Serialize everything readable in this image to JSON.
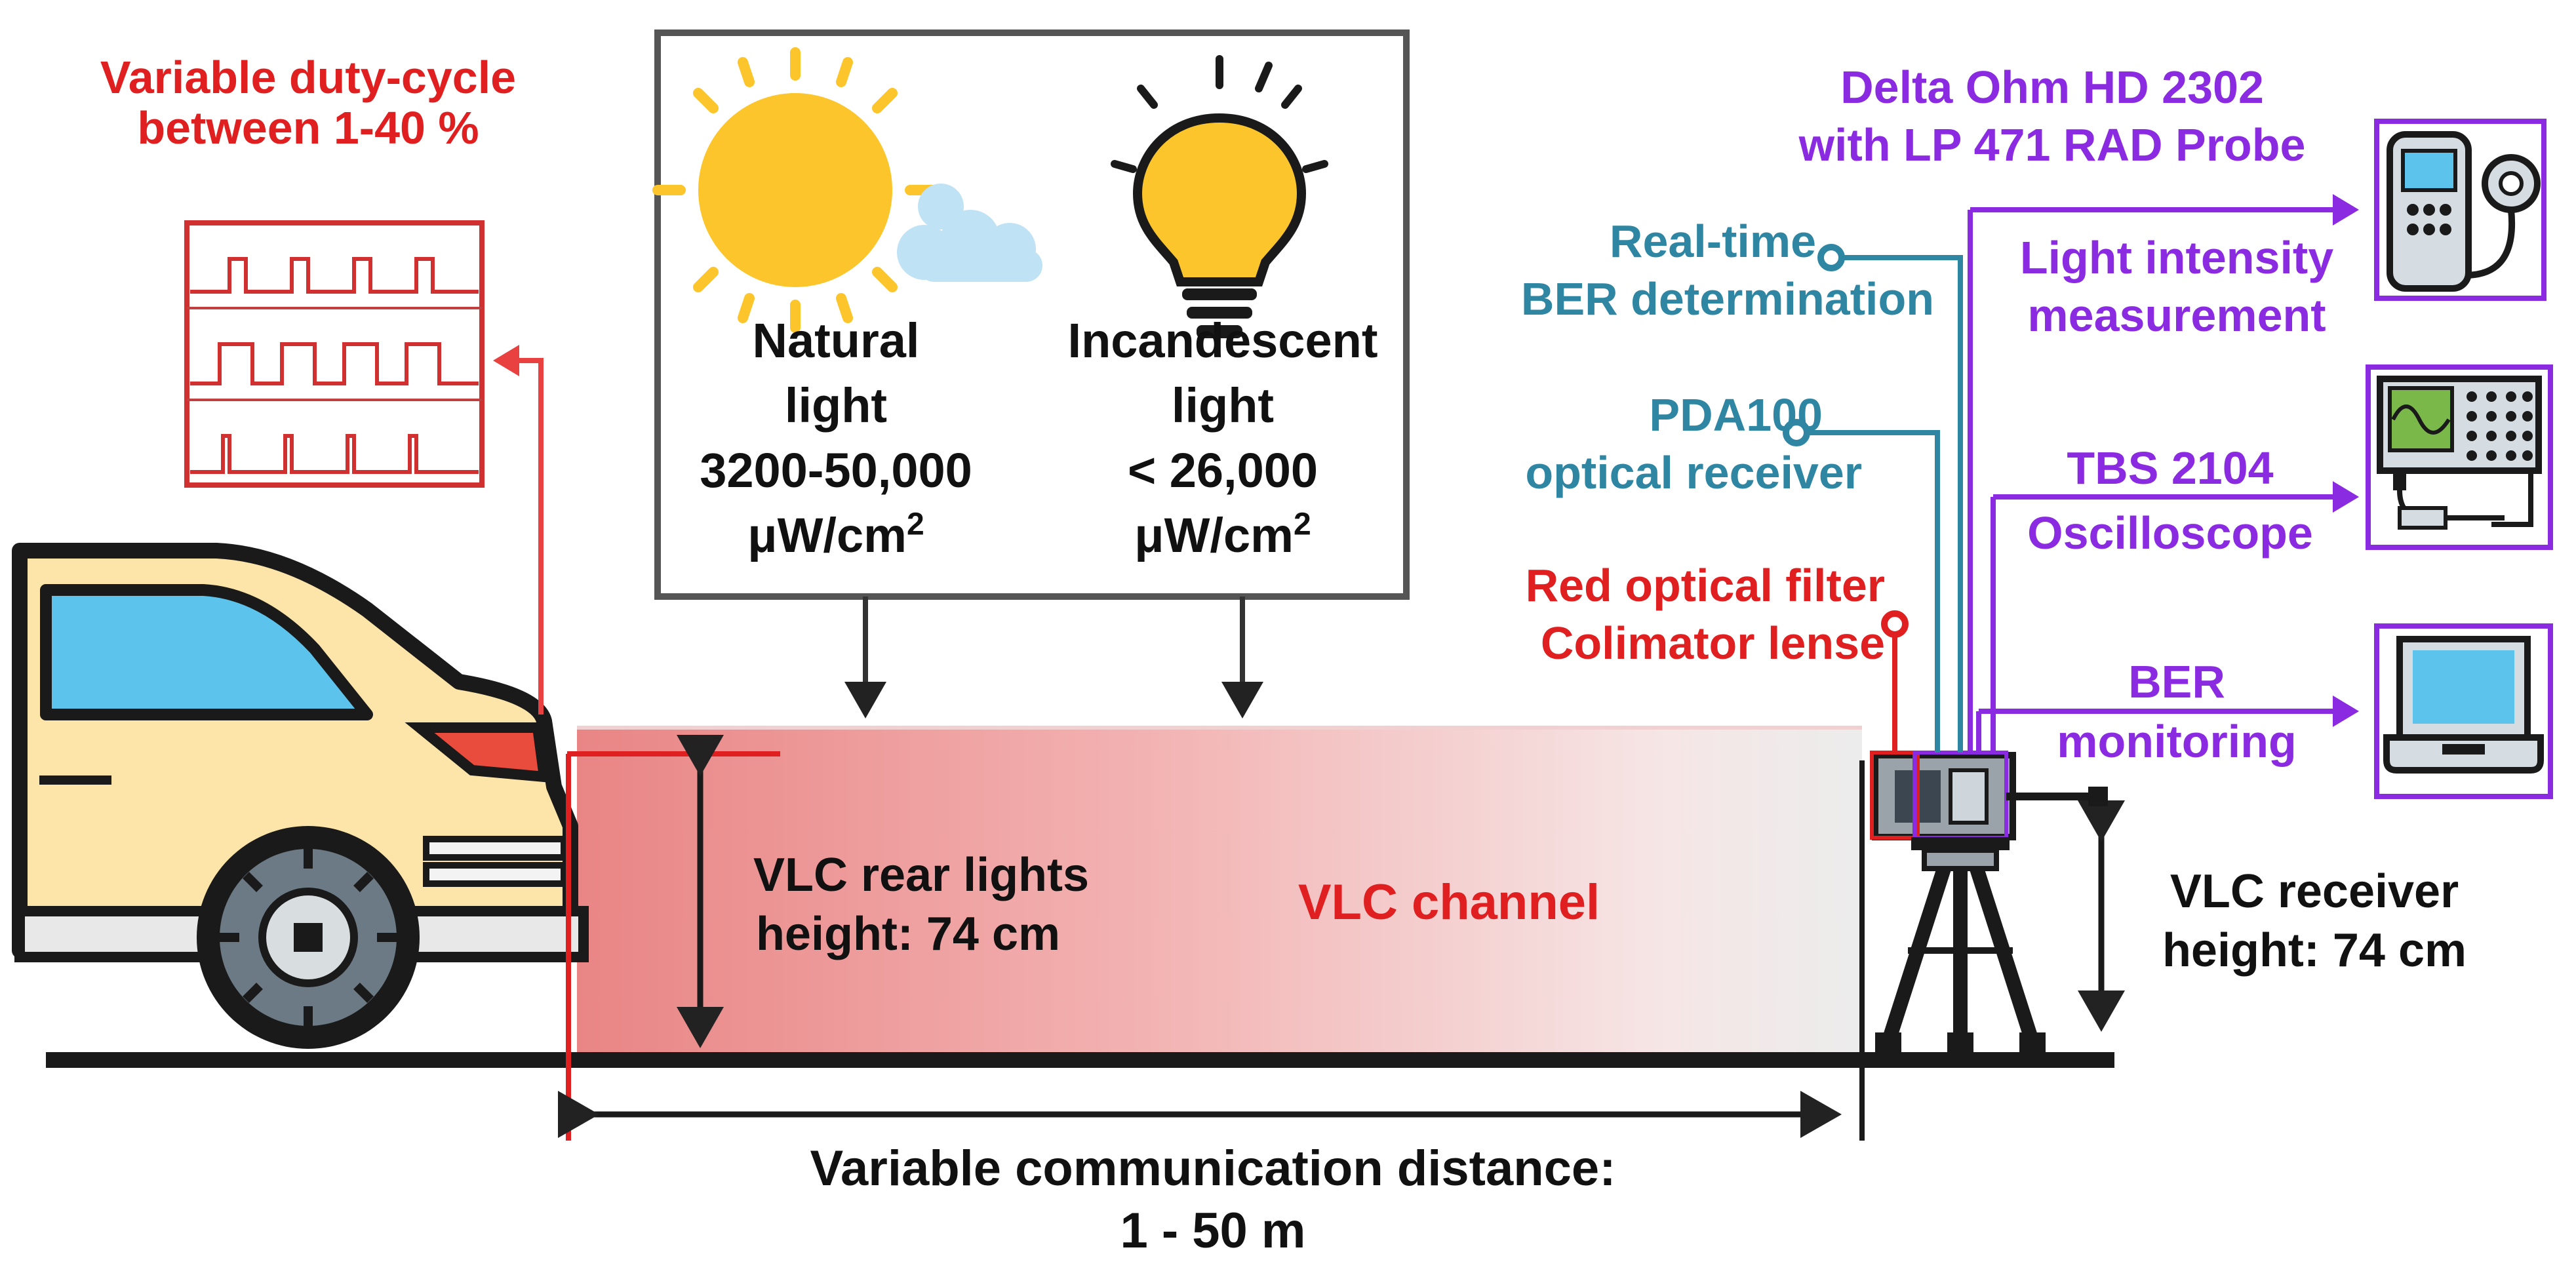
{
  "top_left": {
    "line1": "Variable duty-cycle",
    "line2": "between 1-40 %"
  },
  "ambient_box": {
    "natural": {
      "line1": "Natural",
      "line2": "light",
      "line3": "3200-50,000",
      "unit": "μW/cm",
      "exp": "2"
    },
    "incandescent": {
      "line1": "Incandescent",
      "line2": "light",
      "line3": "< 26,000",
      "unit": "μW/cm",
      "exp": "2"
    }
  },
  "receiver_labels": {
    "realtime": {
      "line1": "Real-time",
      "line2": "BER determination"
    },
    "pda": {
      "line1": "PDA100",
      "line2": "optical receiver"
    },
    "filter": {
      "line1": "Red optical filter",
      "line2": "Colimator lense"
    }
  },
  "instruments": {
    "delta": {
      "line1": "Delta Ohm HD 2302",
      "line2": "with LP 471 RAD Probe"
    },
    "light": {
      "line1": "Light intensity",
      "line2": "measurement"
    },
    "tbs": {
      "line1": "TBS 2104",
      "line2": "Oscilloscope"
    },
    "ber": {
      "line1": "BER",
      "line2": "monitoring"
    }
  },
  "channel": {
    "label": "VLC channel",
    "rear_lights": {
      "line1": "VLC rear lights",
      "line2": "height: 74 cm"
    },
    "receiver_height": {
      "line1": "VLC receiver",
      "line2": "height: 74 cm"
    }
  },
  "distance": {
    "line1": "Variable communication distance:",
    "line2": "1 - 50 m"
  },
  "colors": {
    "red": "#e02020",
    "teal": "#2e86a3",
    "purple": "#8a2be2",
    "car_body": "#fde4a8",
    "window": "#5bc3ec",
    "sun": "#fbc52b"
  }
}
